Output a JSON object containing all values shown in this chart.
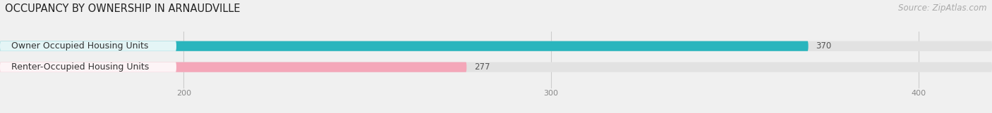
{
  "title": "OCCUPANCY BY OWNERSHIP IN ARNAUDVILLE",
  "source_text": "Source: ZipAtlas.com",
  "categories": [
    "Owner Occupied Housing Units",
    "Renter-Occupied Housing Units"
  ],
  "values": [
    370,
    277
  ],
  "bar_colors": [
    "#2ab5bd",
    "#f4a7b9"
  ],
  "xlim_min": 150,
  "xlim_max": 420,
  "xticks": [
    200,
    300,
    400
  ],
  "title_fontsize": 10.5,
  "source_fontsize": 8.5,
  "bar_label_fontsize": 8.5,
  "category_fontsize": 9,
  "background_color": "#f0f0f0",
  "bar_bg_color": "#e2e2e2",
  "label_area_color": "#ffffff"
}
